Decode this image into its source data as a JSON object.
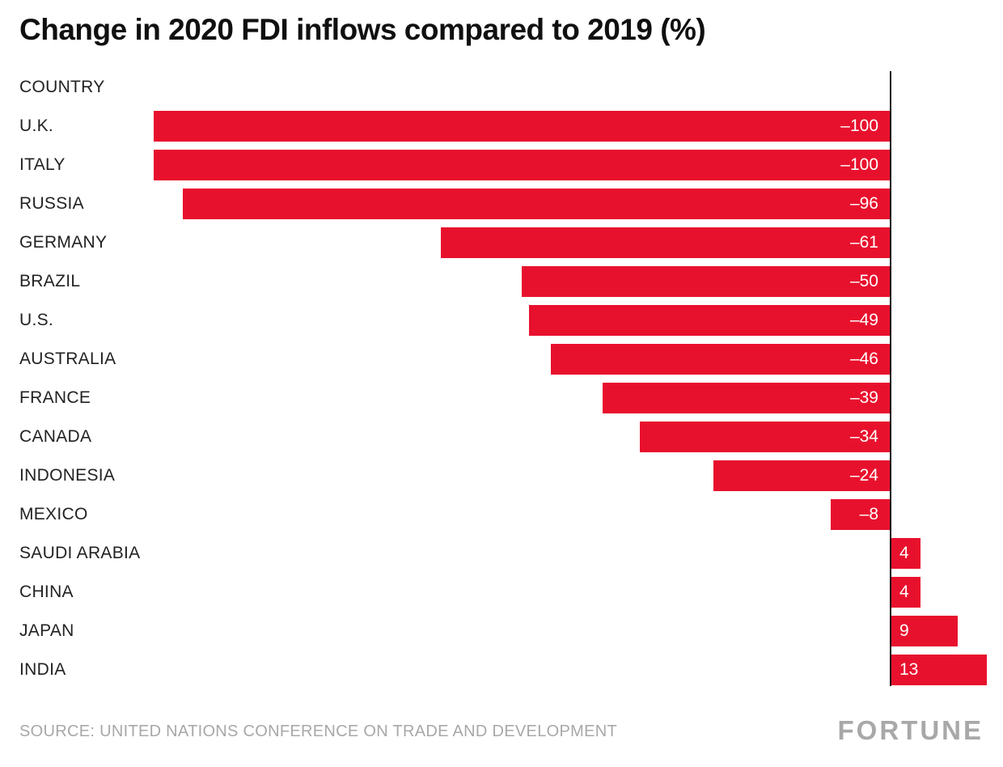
{
  "title": "Change in 2020 FDI inflows compared to 2019 (%)",
  "source": "SOURCE: UNITED NATIONS CONFERENCE ON TRADE AND DEVELOPMENT",
  "brand": "FORTUNE",
  "colors": {
    "bar": "#e8112d",
    "title": "#101010",
    "country_label": "#222222",
    "value_label": "#ffffff",
    "source_text": "#a8a8a8",
    "baseline": "#111111"
  },
  "chart_data": {
    "type": "bar",
    "orientation": "horizontal",
    "header_label": "COUNTRY",
    "categories": [
      "U.K.",
      "ITALY",
      "RUSSIA",
      "GERMANY",
      "BRAZIL",
      "U.S.",
      "AUSTRALIA",
      "FRANCE",
      "CANADA",
      "INDONESIA",
      "MEXICO",
      "SAUDI ARABIA",
      "CHINA",
      "JAPAN",
      "INDIA"
    ],
    "values": [
      -100,
      -100,
      -96,
      -61,
      -50,
      -49,
      -46,
      -39,
      -34,
      -24,
      -8,
      4,
      4,
      9,
      13
    ],
    "value_labels": [
      "–100",
      "–100",
      "–96",
      "–61",
      "–50",
      "–49",
      "–46",
      "–39",
      "–34",
      "–24",
      "–8",
      "4",
      "4",
      "9",
      "13"
    ],
    "xlim": [
      -100,
      15
    ],
    "baseline_value": 0,
    "grid": false,
    "legend": false,
    "title": "Change in 2020 FDI inflows compared to 2019 (%)",
    "xlabel": "",
    "ylabel": "COUNTRY"
  }
}
